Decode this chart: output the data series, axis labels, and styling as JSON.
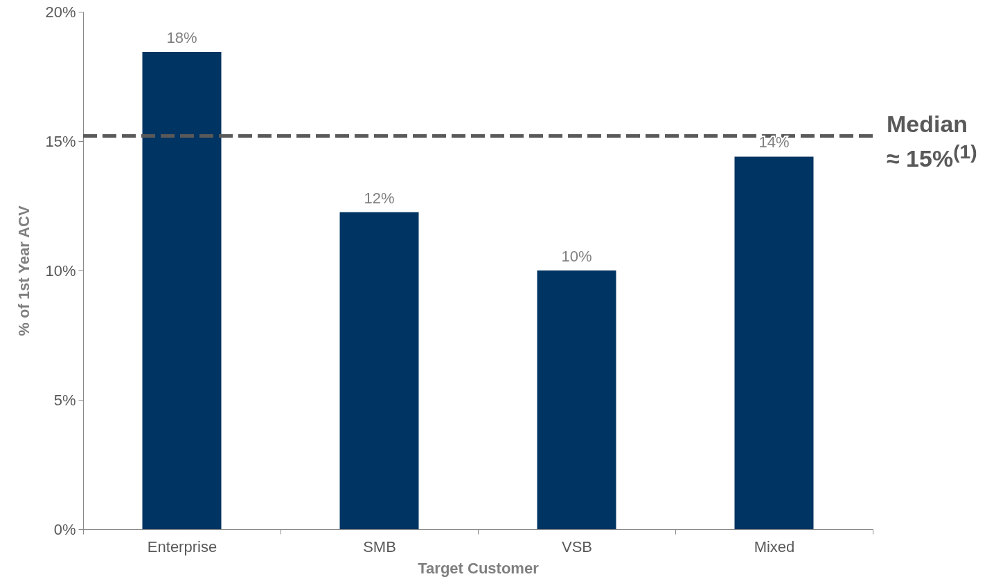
{
  "chart_data": {
    "type": "bar",
    "xlabel": "Target Customer",
    "ylabel": "% of 1st Year ACV",
    "categories": [
      "Enterprise",
      "SMB",
      "VSB",
      "Mixed"
    ],
    "values": [
      18.45,
      12.25,
      10.0,
      14.4
    ],
    "value_labels": [
      "18%",
      "12%",
      "10%",
      "14%"
    ],
    "color": "#003462",
    "ylim": [
      0,
      20
    ],
    "yticks": [
      {
        "value": 0,
        "label": "0%"
      },
      {
        "value": 5,
        "label": "5%"
      },
      {
        "value": 10,
        "label": "10%"
      },
      {
        "value": 15,
        "label": "15%"
      },
      {
        "value": 20,
        "label": "20%"
      }
    ],
    "ref_lines": [
      {
        "axis": "y",
        "value": 15.2,
        "label": "Median ≈ 15%$^{(1)}$",
        "color": "#595959",
        "line_style": "dashed"
      }
    ],
    "grid": false
  }
}
